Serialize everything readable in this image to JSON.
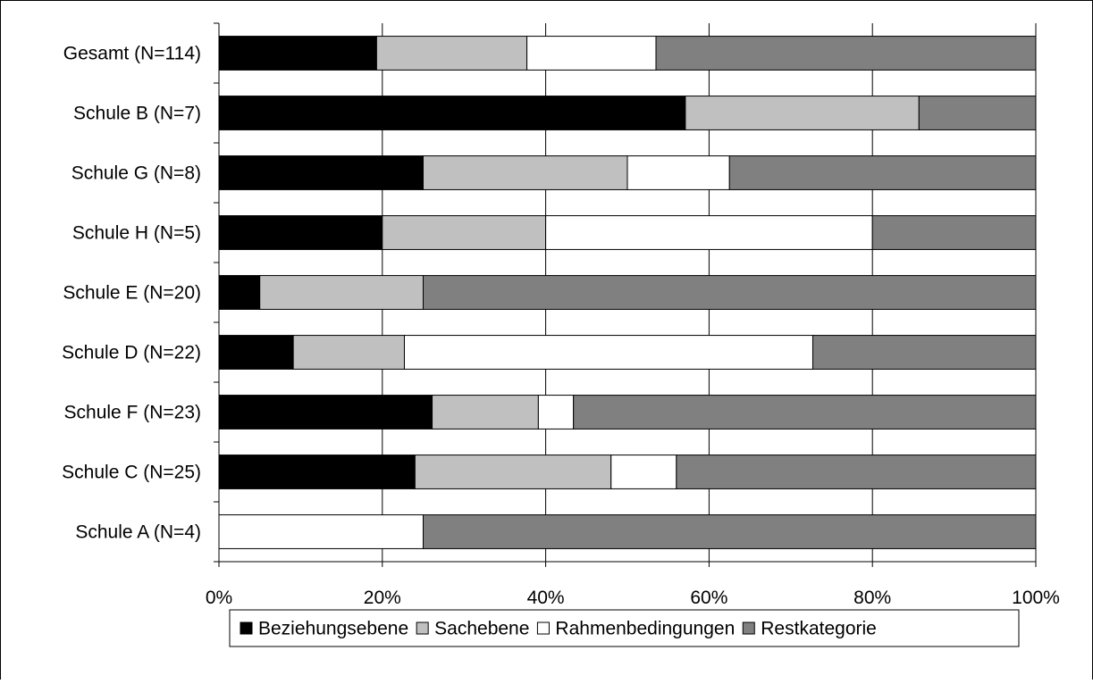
{
  "chart_data": {
    "type": "bar",
    "orientation": "horizontal",
    "stacked": "100%",
    "title": "",
    "xlabel": "",
    "ylabel": "",
    "xlim": [
      0,
      100
    ],
    "x_ticks": [
      "0%",
      "20%",
      "40%",
      "60%",
      "80%",
      "100%"
    ],
    "grid": "vertical gridlines",
    "legend_position": "bottom",
    "categories": [
      "Gesamt (N=114)",
      "Schule B (N=7)",
      "Schule G (N=8)",
      "Schule H (N=5)",
      "Schule E (N=20)",
      "Schule D (N=22)",
      "Schule F (N=23)",
      "Schule C (N=25)",
      "Schule A (N=4)"
    ],
    "series": [
      {
        "name": "Beziehungsebene",
        "color": "#000000",
        "values": [
          19.3,
          57.1,
          25.0,
          20.0,
          5.0,
          9.1,
          26.1,
          24.0,
          0.0
        ]
      },
      {
        "name": "Sachebene",
        "color": "#c0c0c0",
        "values": [
          18.4,
          28.6,
          25.0,
          20.0,
          20.0,
          13.6,
          13.0,
          24.0,
          0.0
        ]
      },
      {
        "name": "Rahmenbedingungen",
        "color": "#ffffff",
        "values": [
          15.8,
          0.0,
          12.5,
          40.0,
          0.0,
          50.0,
          4.3,
          8.0,
          25.0
        ]
      },
      {
        "name": "Restkategorie",
        "color": "#808080",
        "values": [
          46.5,
          14.3,
          37.5,
          20.0,
          75.0,
          27.3,
          56.6,
          44.0,
          75.0
        ]
      }
    ]
  }
}
